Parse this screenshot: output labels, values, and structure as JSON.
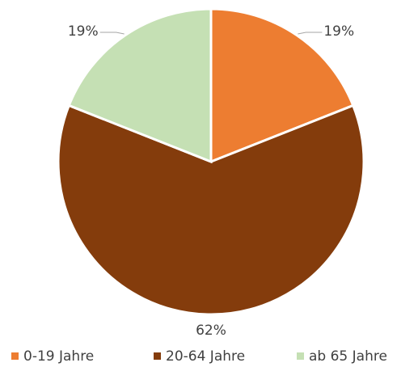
{
  "chart_data": {
    "type": "pie",
    "categories": [
      "0-19 Jahre",
      "20-64 Jahre",
      "ab 65 Jahre"
    ],
    "values": [
      19,
      62,
      19
    ],
    "value_labels": [
      "19%",
      "62%",
      "19%"
    ],
    "colors": [
      "#ED7D31",
      "#843C0C",
      "#C5E0B4"
    ],
    "legend": "bottom"
  }
}
